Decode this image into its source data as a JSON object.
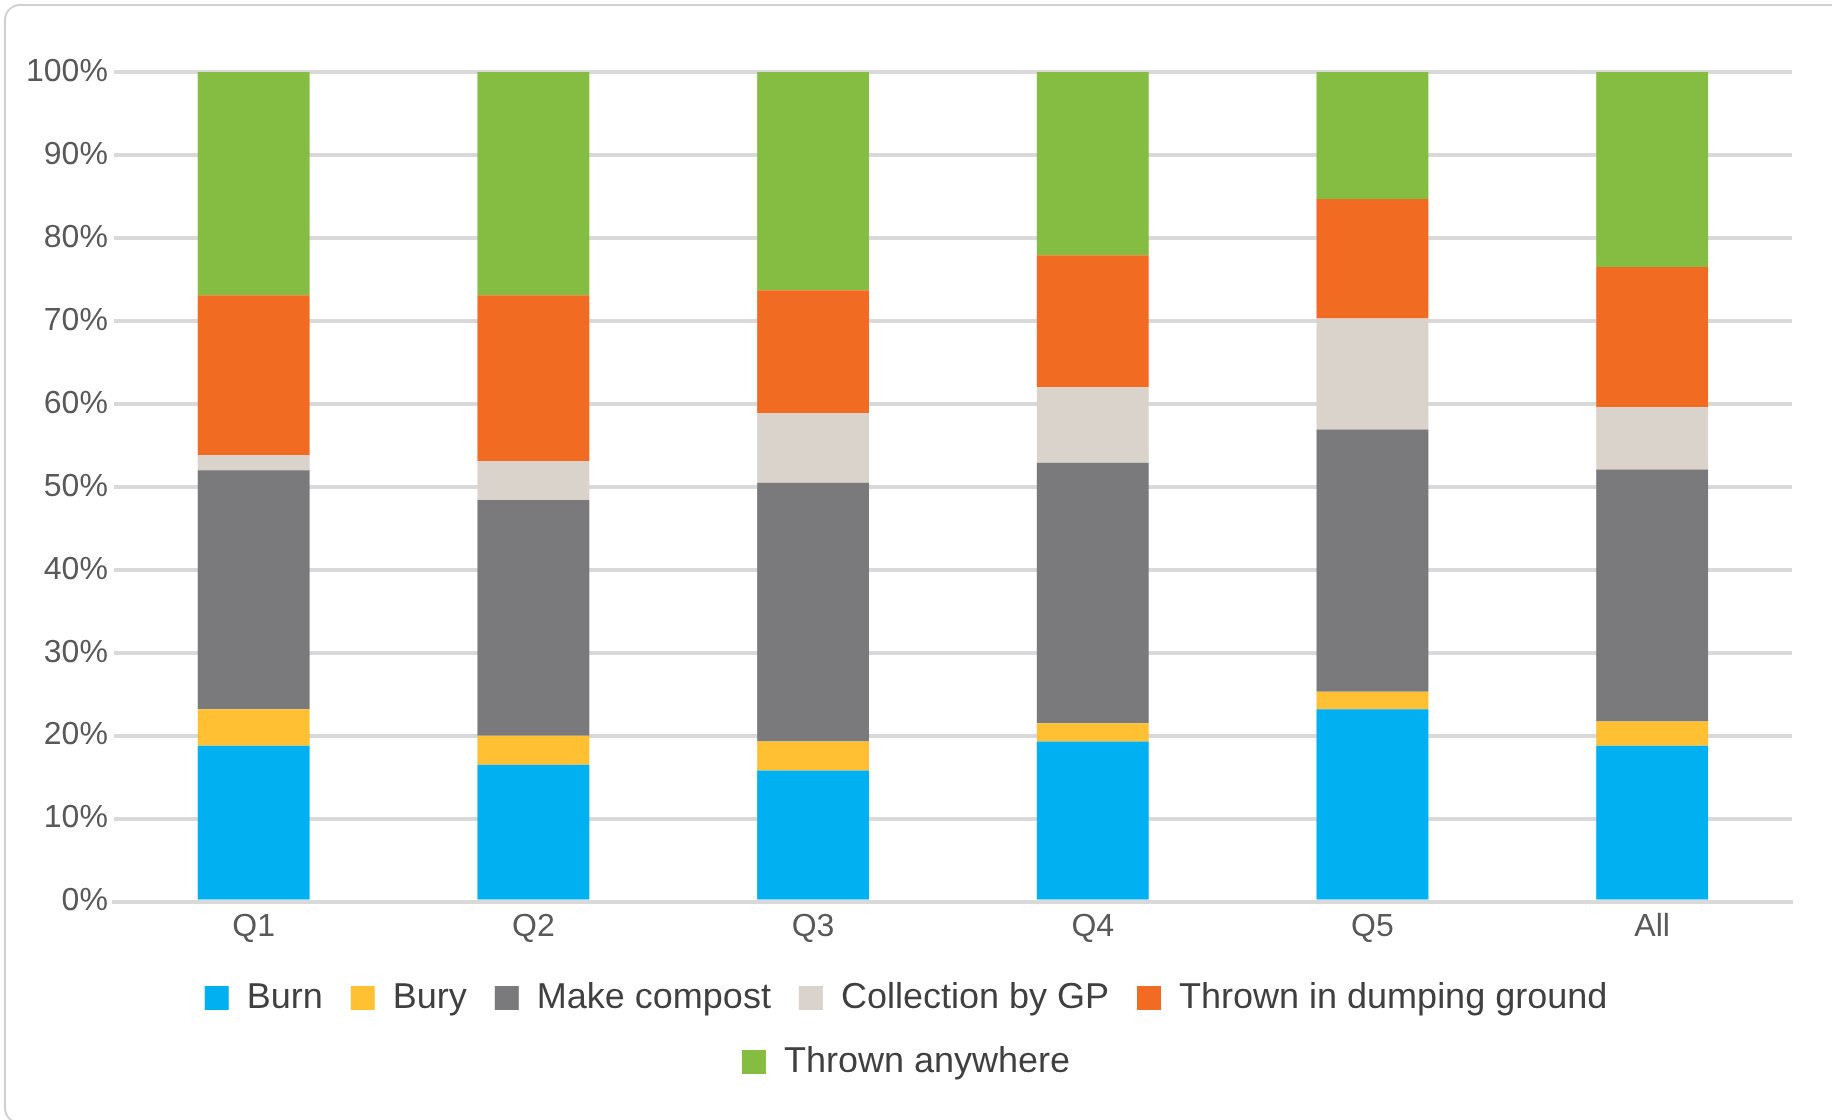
{
  "chart_data": {
    "type": "bar",
    "stacked": true,
    "categories": [
      "Q1",
      "Q2",
      "Q3",
      "Q4",
      "Q5",
      "All"
    ],
    "series": [
      {
        "name": "Burn",
        "color": "#00b0f0",
        "values": [
          18.8,
          16.5,
          15.8,
          19.3,
          23.2,
          18.8
        ]
      },
      {
        "name": "Bury",
        "color": "#ffc133",
        "values": [
          4.4,
          3.5,
          3.5,
          2.2,
          2.1,
          2.9
        ]
      },
      {
        "name": "Make compost",
        "color": "#7a7a7c",
        "values": [
          28.8,
          28.4,
          31.2,
          31.4,
          31.6,
          30.4
        ]
      },
      {
        "name": "Collection by GP",
        "color": "#d9d3cc",
        "values": [
          1.8,
          4.7,
          8.4,
          9.1,
          13.4,
          7.5
        ]
      },
      {
        "name": "Thrown in dumping ground",
        "color": "#f26b22",
        "values": [
          19.3,
          20.0,
          14.8,
          15.9,
          14.4,
          16.9
        ]
      },
      {
        "name": "Thrown anywhere",
        "color": "#84bd41",
        "values": [
          26.9,
          26.9,
          26.3,
          22.1,
          15.3,
          23.5
        ]
      }
    ],
    "ylim": [
      0,
      100
    ],
    "yticks": [
      {
        "value": 0,
        "label": "0%"
      },
      {
        "value": 10,
        "label": "10%"
      },
      {
        "value": 20,
        "label": "20%"
      },
      {
        "value": 30,
        "label": "30%"
      },
      {
        "value": 40,
        "label": "40%"
      },
      {
        "value": 50,
        "label": "50%"
      },
      {
        "value": 60,
        "label": "60%"
      },
      {
        "value": 70,
        "label": "70%"
      },
      {
        "value": 80,
        "label": "80%"
      },
      {
        "value": 90,
        "label": "90%"
      },
      {
        "value": 100,
        "label": "100%"
      }
    ],
    "grid": "y",
    "legend": "bottom"
  }
}
